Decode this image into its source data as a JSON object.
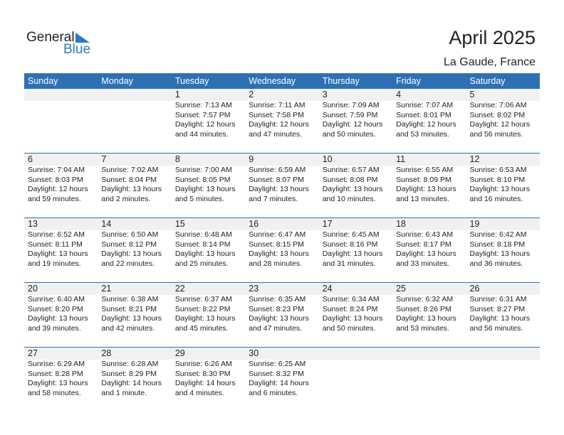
{
  "logo": {
    "word1": "General",
    "word2": "Blue"
  },
  "header": {
    "title": "April 2025",
    "location": "La Gaude, France"
  },
  "colors": {
    "accent": "#2e70b3",
    "band": "#f1f1f1"
  },
  "days_of_week": [
    "Sunday",
    "Monday",
    "Tuesday",
    "Wednesday",
    "Thursday",
    "Friday",
    "Saturday"
  ],
  "weeks": [
    [
      null,
      null,
      {
        "day": "1",
        "sunrise": "Sunrise: 7:13 AM",
        "sunset": "Sunset: 7:57 PM",
        "daylight1": "Daylight: 12 hours",
        "daylight2": "and 44 minutes."
      },
      {
        "day": "2",
        "sunrise": "Sunrise: 7:11 AM",
        "sunset": "Sunset: 7:58 PM",
        "daylight1": "Daylight: 12 hours",
        "daylight2": "and 47 minutes."
      },
      {
        "day": "3",
        "sunrise": "Sunrise: 7:09 AM",
        "sunset": "Sunset: 7:59 PM",
        "daylight1": "Daylight: 12 hours",
        "daylight2": "and 50 minutes."
      },
      {
        "day": "4",
        "sunrise": "Sunrise: 7:07 AM",
        "sunset": "Sunset: 8:01 PM",
        "daylight1": "Daylight: 12 hours",
        "daylight2": "and 53 minutes."
      },
      {
        "day": "5",
        "sunrise": "Sunrise: 7:06 AM",
        "sunset": "Sunset: 8:02 PM",
        "daylight1": "Daylight: 12 hours",
        "daylight2": "and 56 minutes."
      }
    ],
    [
      {
        "day": "6",
        "sunrise": "Sunrise: 7:04 AM",
        "sunset": "Sunset: 8:03 PM",
        "daylight1": "Daylight: 12 hours",
        "daylight2": "and 59 minutes."
      },
      {
        "day": "7",
        "sunrise": "Sunrise: 7:02 AM",
        "sunset": "Sunset: 8:04 PM",
        "daylight1": "Daylight: 13 hours",
        "daylight2": "and 2 minutes."
      },
      {
        "day": "8",
        "sunrise": "Sunrise: 7:00 AM",
        "sunset": "Sunset: 8:05 PM",
        "daylight1": "Daylight: 13 hours",
        "daylight2": "and 5 minutes."
      },
      {
        "day": "9",
        "sunrise": "Sunrise: 6:59 AM",
        "sunset": "Sunset: 8:07 PM",
        "daylight1": "Daylight: 13 hours",
        "daylight2": "and 7 minutes."
      },
      {
        "day": "10",
        "sunrise": "Sunrise: 6:57 AM",
        "sunset": "Sunset: 8:08 PM",
        "daylight1": "Daylight: 13 hours",
        "daylight2": "and 10 minutes."
      },
      {
        "day": "11",
        "sunrise": "Sunrise: 6:55 AM",
        "sunset": "Sunset: 8:09 PM",
        "daylight1": "Daylight: 13 hours",
        "daylight2": "and 13 minutes."
      },
      {
        "day": "12",
        "sunrise": "Sunrise: 6:53 AM",
        "sunset": "Sunset: 8:10 PM",
        "daylight1": "Daylight: 13 hours",
        "daylight2": "and 16 minutes."
      }
    ],
    [
      {
        "day": "13",
        "sunrise": "Sunrise: 6:52 AM",
        "sunset": "Sunset: 8:11 PM",
        "daylight1": "Daylight: 13 hours",
        "daylight2": "and 19 minutes."
      },
      {
        "day": "14",
        "sunrise": "Sunrise: 6:50 AM",
        "sunset": "Sunset: 8:12 PM",
        "daylight1": "Daylight: 13 hours",
        "daylight2": "and 22 minutes."
      },
      {
        "day": "15",
        "sunrise": "Sunrise: 6:48 AM",
        "sunset": "Sunset: 8:14 PM",
        "daylight1": "Daylight: 13 hours",
        "daylight2": "and 25 minutes."
      },
      {
        "day": "16",
        "sunrise": "Sunrise: 6:47 AM",
        "sunset": "Sunset: 8:15 PM",
        "daylight1": "Daylight: 13 hours",
        "daylight2": "and 28 minutes."
      },
      {
        "day": "17",
        "sunrise": "Sunrise: 6:45 AM",
        "sunset": "Sunset: 8:16 PM",
        "daylight1": "Daylight: 13 hours",
        "daylight2": "and 31 minutes."
      },
      {
        "day": "18",
        "sunrise": "Sunrise: 6:43 AM",
        "sunset": "Sunset: 8:17 PM",
        "daylight1": "Daylight: 13 hours",
        "daylight2": "and 33 minutes."
      },
      {
        "day": "19",
        "sunrise": "Sunrise: 6:42 AM",
        "sunset": "Sunset: 8:18 PM",
        "daylight1": "Daylight: 13 hours",
        "daylight2": "and 36 minutes."
      }
    ],
    [
      {
        "day": "20",
        "sunrise": "Sunrise: 6:40 AM",
        "sunset": "Sunset: 8:20 PM",
        "daylight1": "Daylight: 13 hours",
        "daylight2": "and 39 minutes."
      },
      {
        "day": "21",
        "sunrise": "Sunrise: 6:38 AM",
        "sunset": "Sunset: 8:21 PM",
        "daylight1": "Daylight: 13 hours",
        "daylight2": "and 42 minutes."
      },
      {
        "day": "22",
        "sunrise": "Sunrise: 6:37 AM",
        "sunset": "Sunset: 8:22 PM",
        "daylight1": "Daylight: 13 hours",
        "daylight2": "and 45 minutes."
      },
      {
        "day": "23",
        "sunrise": "Sunrise: 6:35 AM",
        "sunset": "Sunset: 8:23 PM",
        "daylight1": "Daylight: 13 hours",
        "daylight2": "and 47 minutes."
      },
      {
        "day": "24",
        "sunrise": "Sunrise: 6:34 AM",
        "sunset": "Sunset: 8:24 PM",
        "daylight1": "Daylight: 13 hours",
        "daylight2": "and 50 minutes."
      },
      {
        "day": "25",
        "sunrise": "Sunrise: 6:32 AM",
        "sunset": "Sunset: 8:26 PM",
        "daylight1": "Daylight: 13 hours",
        "daylight2": "and 53 minutes."
      },
      {
        "day": "26",
        "sunrise": "Sunrise: 6:31 AM",
        "sunset": "Sunset: 8:27 PM",
        "daylight1": "Daylight: 13 hours",
        "daylight2": "and 56 minutes."
      }
    ],
    [
      {
        "day": "27",
        "sunrise": "Sunrise: 6:29 AM",
        "sunset": "Sunset: 8:28 PM",
        "daylight1": "Daylight: 13 hours",
        "daylight2": "and 58 minutes."
      },
      {
        "day": "28",
        "sunrise": "Sunrise: 6:28 AM",
        "sunset": "Sunset: 8:29 PM",
        "daylight1": "Daylight: 14 hours",
        "daylight2": "and 1 minute."
      },
      {
        "day": "29",
        "sunrise": "Sunrise: 6:26 AM",
        "sunset": "Sunset: 8:30 PM",
        "daylight1": "Daylight: 14 hours",
        "daylight2": "and 4 minutes."
      },
      {
        "day": "30",
        "sunrise": "Sunrise: 6:25 AM",
        "sunset": "Sunset: 8:32 PM",
        "daylight1": "Daylight: 14 hours",
        "daylight2": "and 6 minutes."
      },
      null,
      null,
      null
    ]
  ]
}
